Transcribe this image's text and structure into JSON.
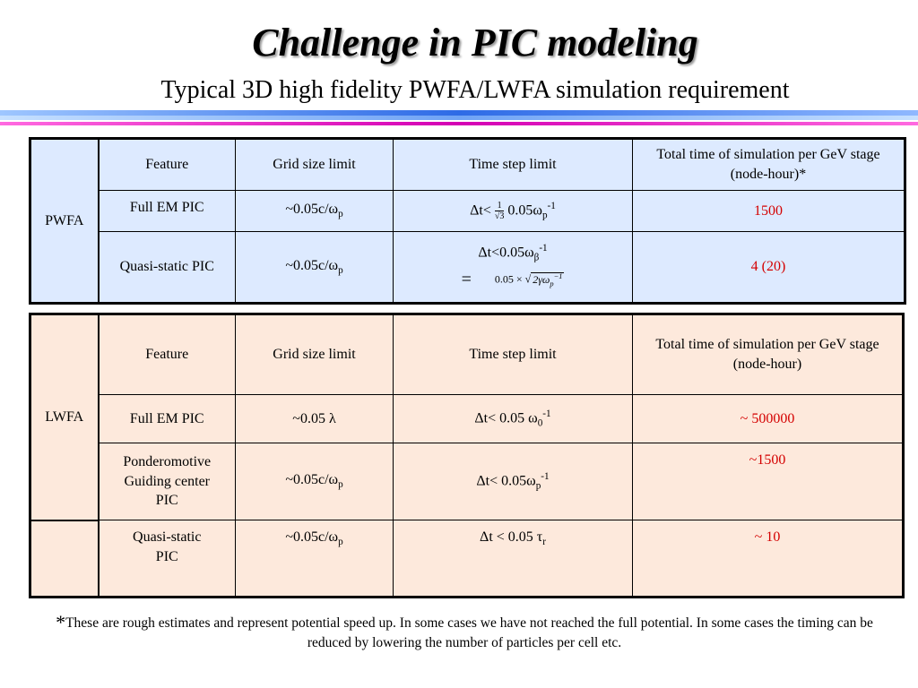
{
  "slide": {
    "title": "Challenge in PIC modeling",
    "subtitle": "Typical 3D high fidelity PWFA/LWFA simulation requirement"
  },
  "colors": {
    "pwfa_bg": "#ddeaff",
    "lwfa_bg": "#fde9dc",
    "highlight_red": "#d40000"
  },
  "pwfa": {
    "group_label": "PWFA",
    "headers": {
      "feature": "Feature",
      "grid": "Grid size limit",
      "timestep": "Time step limit",
      "total": "Total time of simulation per GeV stage (node-hour)*"
    },
    "rows": [
      {
        "feature": "Full EM PIC",
        "grid_prefix": "~0.05c/ω",
        "grid_sub": "p",
        "dt_prefix": "Δt<",
        "dt_frac_num": "1",
        "dt_frac_den": "√3",
        "dt_value": "0.05ω",
        "dt_sub": "p",
        "dt_sup": "-1",
        "total": "1500"
      },
      {
        "feature": "Quasi-static PIC",
        "grid_prefix": "~0.05c/ω",
        "grid_sub": "p",
        "dt_prefix": "Δt<0.05ω",
        "dt_sub": "β",
        "dt_sup": "-1",
        "dt_eq": "=",
        "dt_expr_a": "0.05 × √",
        "dt_expr_b": "2γω",
        "dt_expr_sub": "p",
        "dt_expr_sup": "−1",
        "total": "4 (20)"
      }
    ]
  },
  "lwfa": {
    "group_label": "LWFA",
    "headers": {
      "feature": "Feature",
      "grid": "Grid size limit",
      "timestep": "Time step limit",
      "total": "Total time of simulation per  GeV stage (node-hour)"
    },
    "rows": [
      {
        "feature": "Full EM PIC",
        "grid": "~0.05 λ",
        "dt_prefix": "Δt< 0.05 ω",
        "dt_sub": "0",
        "dt_sup": "-1",
        "total": "~ 500000"
      },
      {
        "feature_line1": "Ponderomotive",
        "feature_line2": "Guiding center",
        "feature_line3": "PIC",
        "grid_prefix": "~0.05c/ω",
        "grid_sub": "p",
        "dt_prefix": "Δt< 0.05ω",
        "dt_sub": "p",
        "dt_sup": "-1",
        "total": "~1500"
      },
      {
        "feature_line1": "Quasi-static",
        "feature_line2": "PIC",
        "grid_prefix": "~0.05c/ω",
        "grid_sub": "p",
        "dt_prefix": "Δt < 0.05 τ",
        "dt_sub": "r",
        "total": "~ 10"
      }
    ]
  },
  "footnote": {
    "star": "*",
    "text": "These are rough estimates and represent potential speed up. In some cases we have not reached the full potential. In some cases the timing can be reduced by lowering the number of particles per cell etc."
  }
}
